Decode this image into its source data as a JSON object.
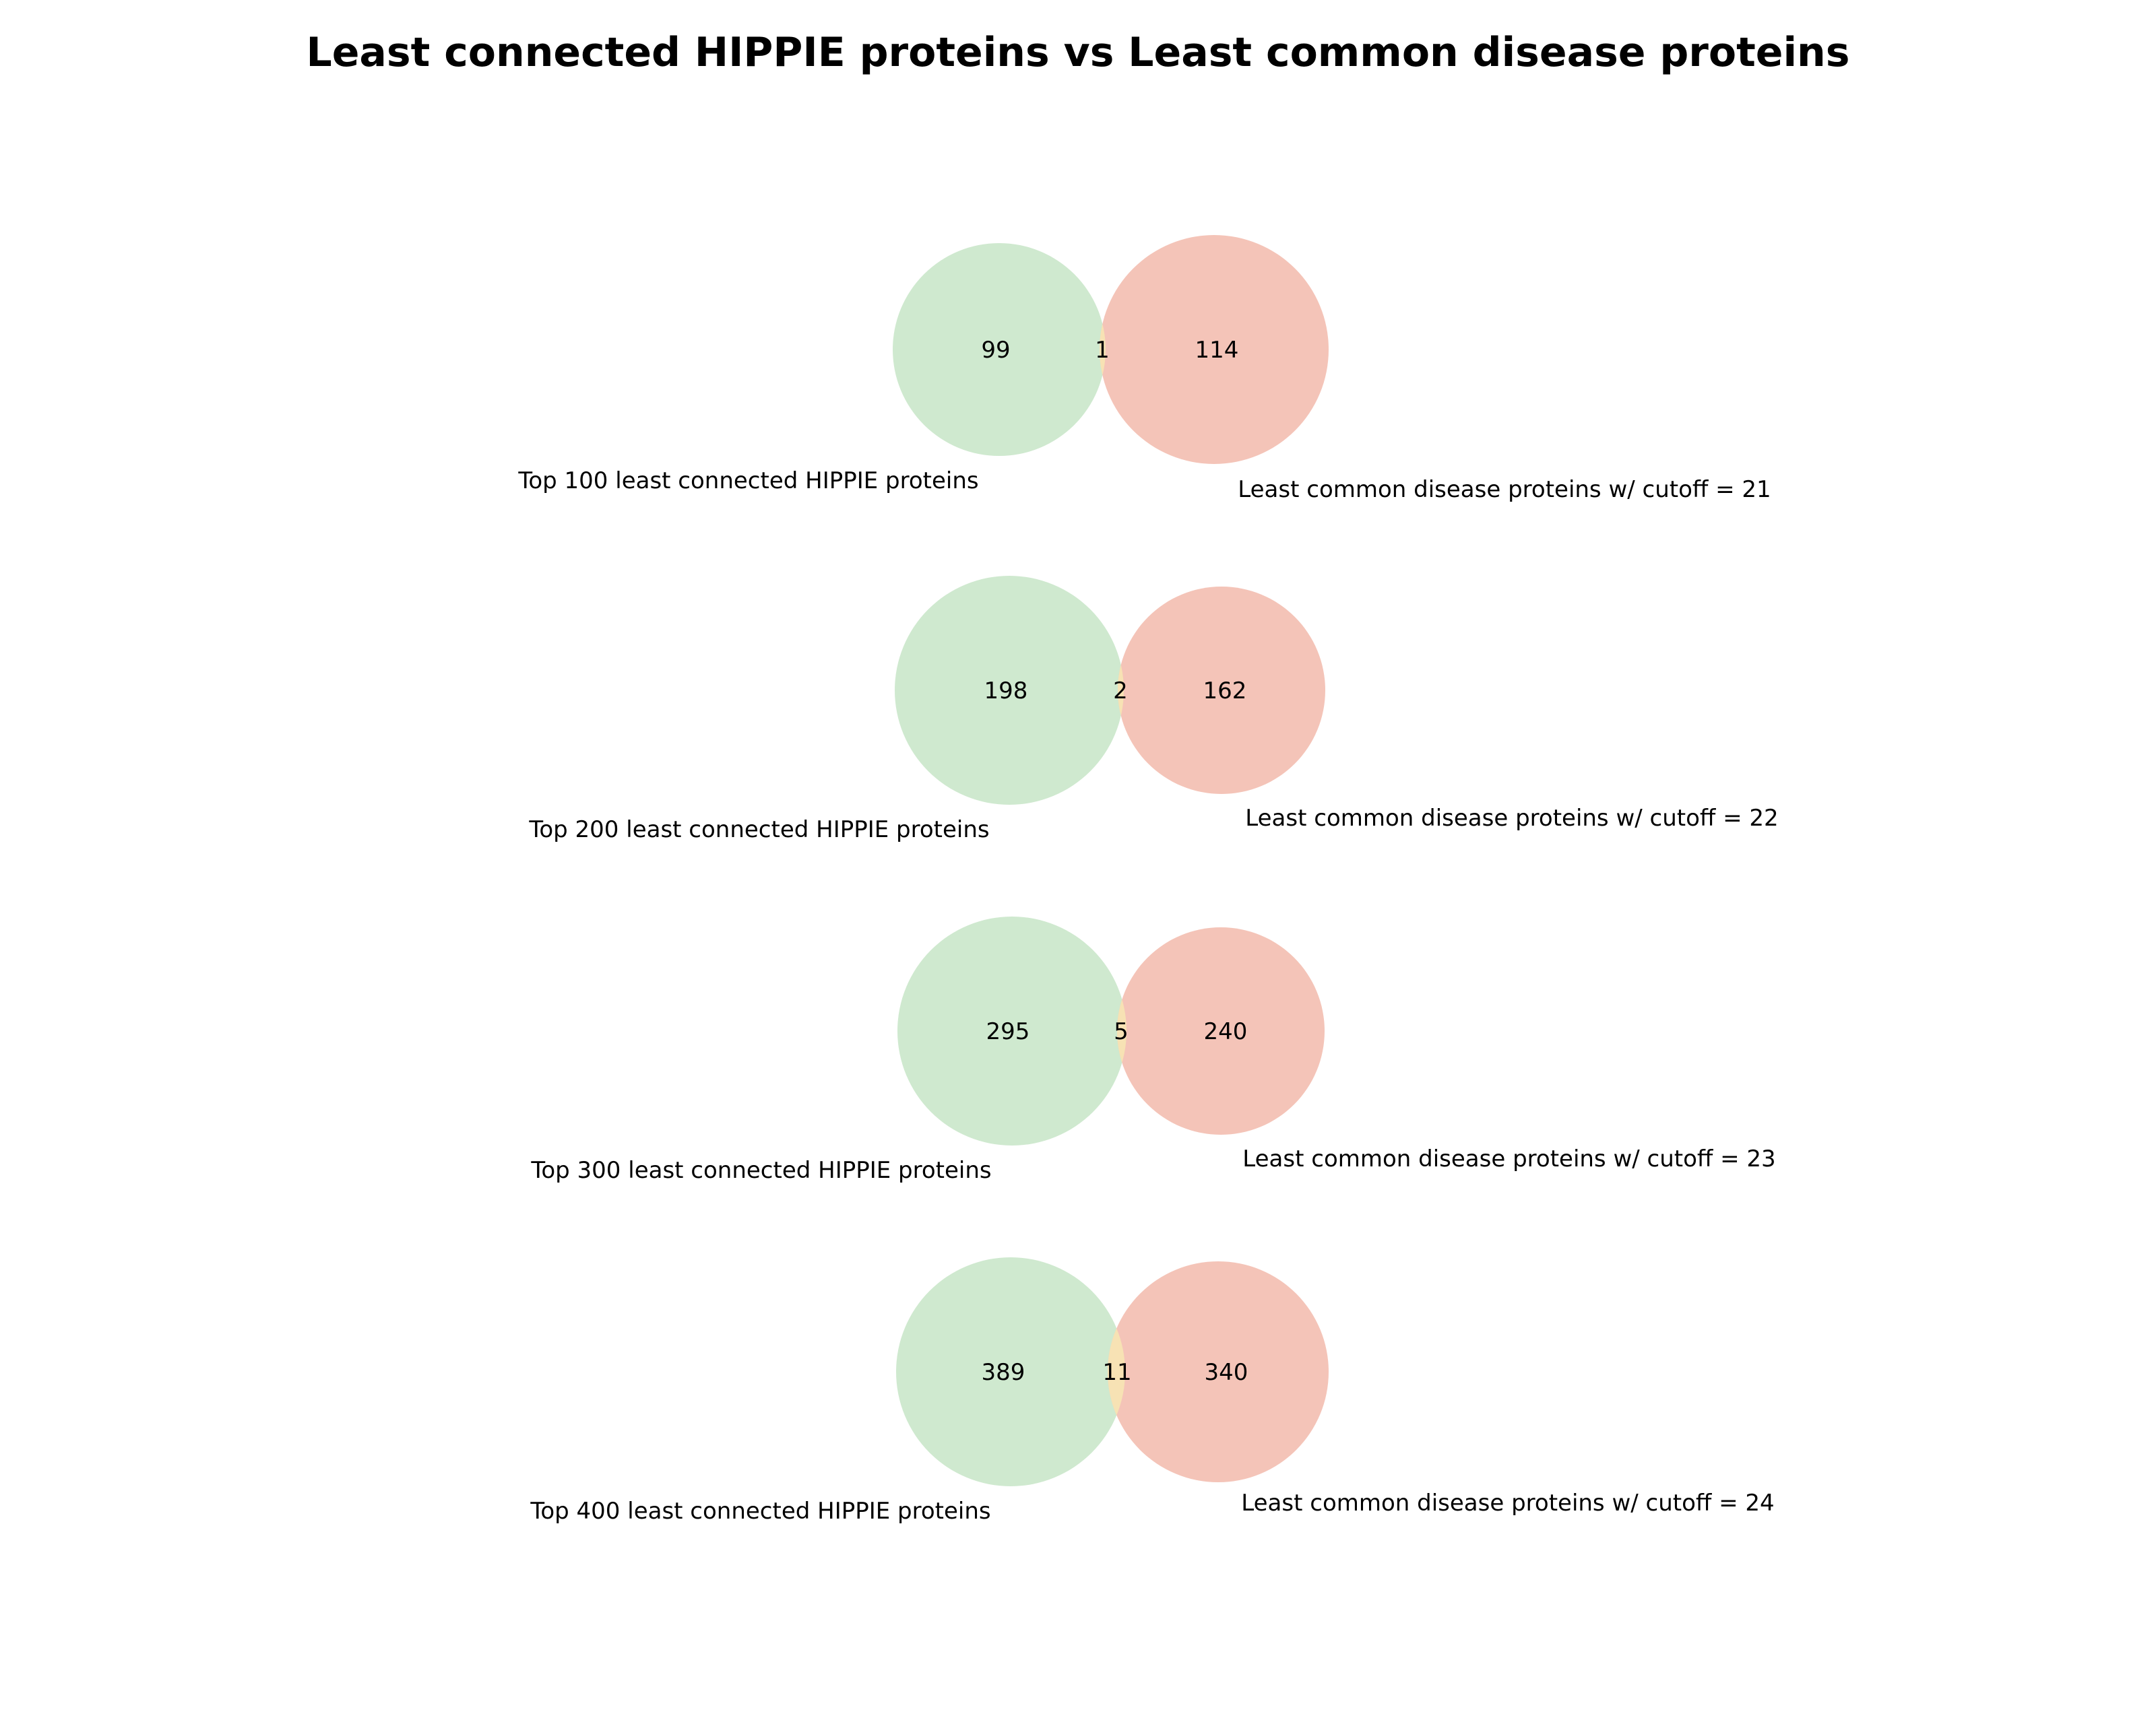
{
  "title": "Least connected HIPPIE proteins vs Least common disease proteins",
  "colors": {
    "left_set": "#cfe9cf",
    "right_set": "#f4c4b8",
    "overlap": "#f7e2b4"
  },
  "diagrams": [
    {
      "left_only": "99",
      "overlap": "1",
      "right_only": "114",
      "left_label": "Top 100 least connected HIPPIE proteins",
      "right_label": "Least common disease proteins w/ cutoff = 21"
    },
    {
      "left_only": "198",
      "overlap": "2",
      "right_only": "162",
      "left_label": "Top 200 least connected HIPPIE proteins",
      "right_label": "Least common disease proteins w/ cutoff = 22"
    },
    {
      "left_only": "295",
      "overlap": "5",
      "right_only": "240",
      "left_label": "Top 300 least connected HIPPIE proteins",
      "right_label": "Least common disease proteins w/ cutoff = 23"
    },
    {
      "left_only": "389",
      "overlap": "11",
      "right_only": "340",
      "left_label": "Top 400 least connected HIPPIE proteins",
      "right_label": "Least common disease proteins w/ cutoff = 24"
    }
  ]
}
